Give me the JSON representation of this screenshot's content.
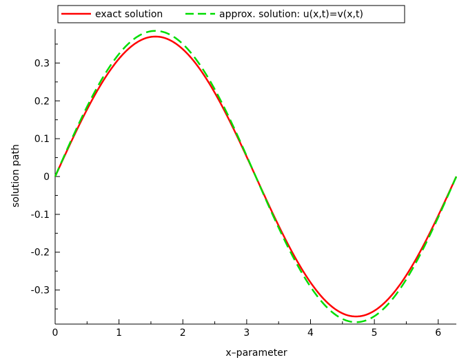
{
  "chart_data": {
    "type": "line",
    "title": "",
    "xlabel": "x–parameter",
    "ylabel": "solution path",
    "xlim": [
      0,
      6.2832
    ],
    "ylim": [
      -0.39,
      0.39
    ],
    "x_ticks": [
      0,
      1,
      2,
      3,
      4,
      5,
      6
    ],
    "y_ticks": [
      0.3,
      0.2,
      0.1,
      0,
      -0.1,
      -0.2,
      -0.3
    ],
    "y_tick_labels": [
      "0.3",
      "0.2",
      "0.1",
      "0",
      "-0.1",
      "-0.2",
      "-0.3"
    ],
    "grid": false,
    "legend_position": "top",
    "x": [
      0,
      0.2618,
      0.5236,
      0.7854,
      1.0472,
      1.309,
      1.5708,
      1.8326,
      2.0944,
      2.3562,
      2.618,
      2.8798,
      3.1416,
      3.4034,
      3.6652,
      3.927,
      4.1888,
      4.4506,
      4.7124,
      4.9742,
      5.236,
      5.4978,
      5.7596,
      6.0214,
      6.2832
    ],
    "series": [
      {
        "name": "exact solution",
        "color": "#ff0000",
        "dash": "solid",
        "values": [
          0,
          0.0958,
          0.185,
          0.2616,
          0.3204,
          0.3573,
          0.37,
          0.3573,
          0.3204,
          0.2616,
          0.185,
          0.0958,
          0,
          -0.0958,
          -0.185,
          -0.2616,
          -0.3204,
          -0.3573,
          -0.37,
          -0.3573,
          -0.3204,
          -0.2616,
          -0.185,
          -0.0958,
          0
        ]
      },
      {
        "name": "approx. solution: u(x,t)=v(x,t)",
        "color": "#00dd00",
        "dash": "dashed",
        "values": [
          0,
          0.0997,
          0.1925,
          0.2722,
          0.3334,
          0.3719,
          0.385,
          0.3719,
          0.3334,
          0.2722,
          0.1925,
          0.0997,
          0,
          -0.0997,
          -0.1925,
          -0.2722,
          -0.3334,
          -0.3719,
          -0.385,
          -0.3719,
          -0.3334,
          -0.2722,
          -0.1925,
          -0.0997,
          0
        ]
      }
    ]
  }
}
